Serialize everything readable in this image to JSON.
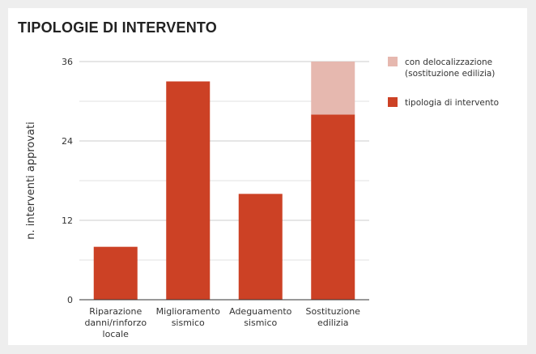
{
  "chart_data": {
    "type": "bar",
    "stacked": true,
    "title": "TIPOLOGIE DI INTERVENTO",
    "ylabel": "n. interventi approvati",
    "xlabel": "",
    "ylim": [
      0,
      36
    ],
    "yticks": [
      0,
      12,
      24,
      36
    ],
    "grid": true,
    "legend_position": "right",
    "categories": [
      [
        "Riparazione",
        "danni/rinforzo",
        "locale"
      ],
      [
        "Miglioramento",
        "sismico"
      ],
      [
        "Adeguamento",
        "sismico"
      ],
      [
        "Sostituzione",
        "edilizia"
      ]
    ],
    "series": [
      {
        "name": "tipologia di intervento",
        "color": "#cc4125",
        "values": [
          8,
          33,
          16,
          28
        ]
      },
      {
        "name": "con delocalizzazione (sostituzione edilizia)",
        "color": "#e6b8af",
        "values": [
          0,
          0,
          0,
          8
        ]
      }
    ],
    "legend": [
      {
        "lines": [
          "con delocalizzazione",
          "(sostituzione edilizia)"
        ],
        "color": "#e6b8af"
      },
      {
        "lines": [
          "tipologia di intervento"
        ],
        "color": "#cc4125"
      }
    ]
  }
}
